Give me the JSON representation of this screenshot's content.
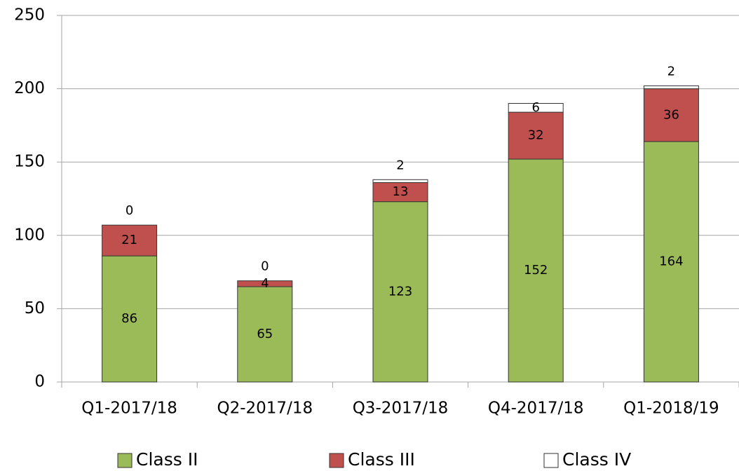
{
  "chart_data": {
    "type": "stacked_bar",
    "categories": [
      "Q1-2017/18",
      "Q2-2017/18",
      "Q3-2017/18",
      "Q4-2017/18",
      "Q1-2018/19"
    ],
    "series": [
      {
        "name": "Class II",
        "color": "#9bbb59",
        "values": [
          86,
          65,
          123,
          152,
          164
        ]
      },
      {
        "name": "Class III",
        "color": "#c0504d",
        "values": [
          21,
          4,
          13,
          32,
          36
        ]
      },
      {
        "name": "Class IV",
        "color": "#ffffff",
        "values": [
          0,
          0,
          2,
          6,
          2
        ]
      }
    ],
    "ylim": [
      0,
      250
    ],
    "yticks": [
      0,
      50,
      100,
      150,
      200,
      250
    ],
    "grid": true,
    "legend": "bottom"
  }
}
